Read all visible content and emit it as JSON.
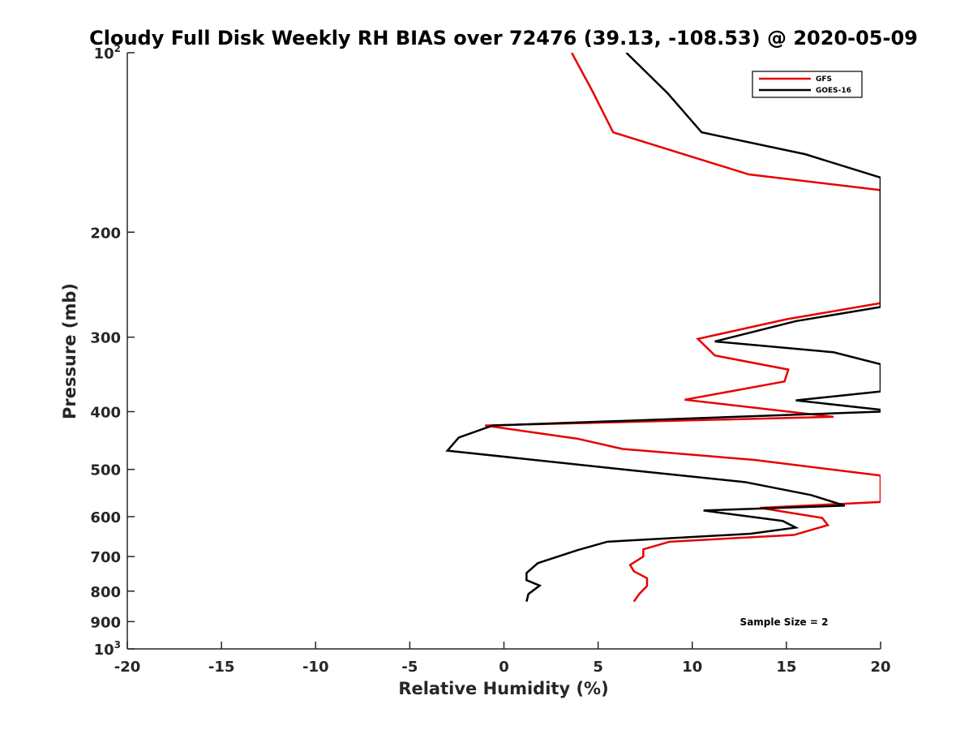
{
  "chart_data": {
    "type": "line",
    "title": "Cloudy Full Disk Weekly RH BIAS over 72476 (39.13, -108.53) @ 2020-05-09",
    "xlabel": "Relative Humidity (%)",
    "ylabel": "Pressure (mb)",
    "xlim": [
      -20,
      20
    ],
    "ylim": [
      1000,
      100
    ],
    "yscale": "log",
    "y_reversed": true,
    "grid": false,
    "xticks": [
      -20,
      -15,
      -10,
      -5,
      0,
      5,
      10,
      15,
      20
    ],
    "yticks": [
      {
        "value": 100,
        "base": "10",
        "exp": "2"
      },
      {
        "value": 200,
        "label": "200"
      },
      {
        "value": 300,
        "label": "300"
      },
      {
        "value": 400,
        "label": "400"
      },
      {
        "value": 500,
        "label": "500"
      },
      {
        "value": 600,
        "label": "600"
      },
      {
        "value": 700,
        "label": "700"
      },
      {
        "value": 800,
        "label": "800"
      },
      {
        "value": 900,
        "label": "900"
      },
      {
        "value": 1000,
        "base": "10",
        "exp": "3"
      }
    ],
    "legend": {
      "position": "top-right"
    },
    "annotation": "Sample Size = 2",
    "series": [
      {
        "name": "GFS",
        "color": "#e60000",
        "points": [
          [
            3.6,
            100
          ],
          [
            4.7,
            116
          ],
          [
            5.8,
            136
          ],
          [
            13.0,
            160
          ],
          [
            20.0,
            170
          ],
          [
            20.0,
            263
          ],
          [
            15.0,
            280
          ],
          [
            10.3,
            302
          ],
          [
            11.2,
            322
          ],
          [
            15.1,
            340
          ],
          [
            14.9,
            356
          ],
          [
            9.6,
            382
          ],
          [
            17.5,
            408
          ],
          [
            -1.0,
            422
          ],
          [
            3.9,
            444
          ],
          [
            6.3,
            462
          ],
          [
            13.3,
            482
          ],
          [
            20.0,
            512
          ],
          [
            20.0,
            567
          ],
          [
            13.6,
            580
          ],
          [
            16.9,
            603
          ],
          [
            17.2,
            620
          ],
          [
            15.4,
            644
          ],
          [
            8.8,
            661
          ],
          [
            7.4,
            681
          ],
          [
            7.4,
            700
          ],
          [
            6.7,
            723
          ],
          [
            6.9,
            741
          ],
          [
            7.6,
            761
          ],
          [
            7.6,
            784
          ],
          [
            7.2,
            808
          ],
          [
            6.9,
            833
          ]
        ]
      },
      {
        "name": "GOES-16",
        "color": "#000000",
        "points": [
          [
            6.5,
            100
          ],
          [
            8.7,
            117
          ],
          [
            10.5,
            136
          ],
          [
            16.0,
            148
          ],
          [
            20.0,
            162
          ],
          [
            20.0,
            267
          ],
          [
            15.5,
            282
          ],
          [
            11.2,
            305
          ],
          [
            17.5,
            318
          ],
          [
            20.0,
            333
          ],
          [
            20.0,
            370
          ],
          [
            15.5,
            383
          ],
          [
            20.0,
            397
          ],
          [
            20.0,
            400
          ],
          [
            -0.6,
            422
          ],
          [
            -2.4,
            442
          ],
          [
            -3.0,
            465
          ],
          [
            6.6,
            501
          ],
          [
            12.8,
            525
          ],
          [
            16.3,
            552
          ],
          [
            18.1,
            575
          ],
          [
            10.6,
            586
          ],
          [
            14.8,
            610
          ],
          [
            15.5,
            626
          ],
          [
            13.1,
            641
          ],
          [
            5.5,
            661
          ],
          [
            3.9,
            683
          ],
          [
            1.8,
            718
          ],
          [
            1.2,
            746
          ],
          [
            1.2,
            767
          ],
          [
            1.9,
            783
          ],
          [
            1.3,
            809
          ],
          [
            1.2,
            833
          ]
        ]
      }
    ]
  }
}
